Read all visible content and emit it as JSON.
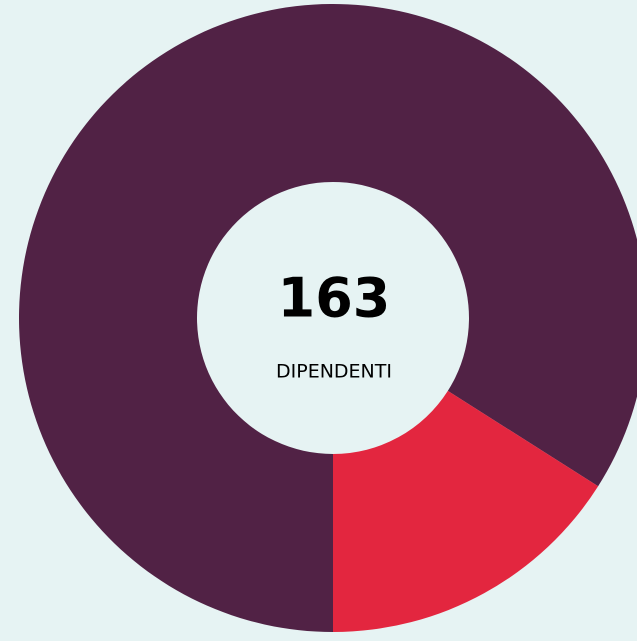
{
  "chart_data": {
    "type": "donut",
    "categories": [
      null,
      null
    ],
    "values": [
      84,
      16
    ],
    "colors": [
      "#512245",
      "#e3263f"
    ],
    "center_title": "163",
    "center_subtitle": "DIPENDENTI"
  }
}
